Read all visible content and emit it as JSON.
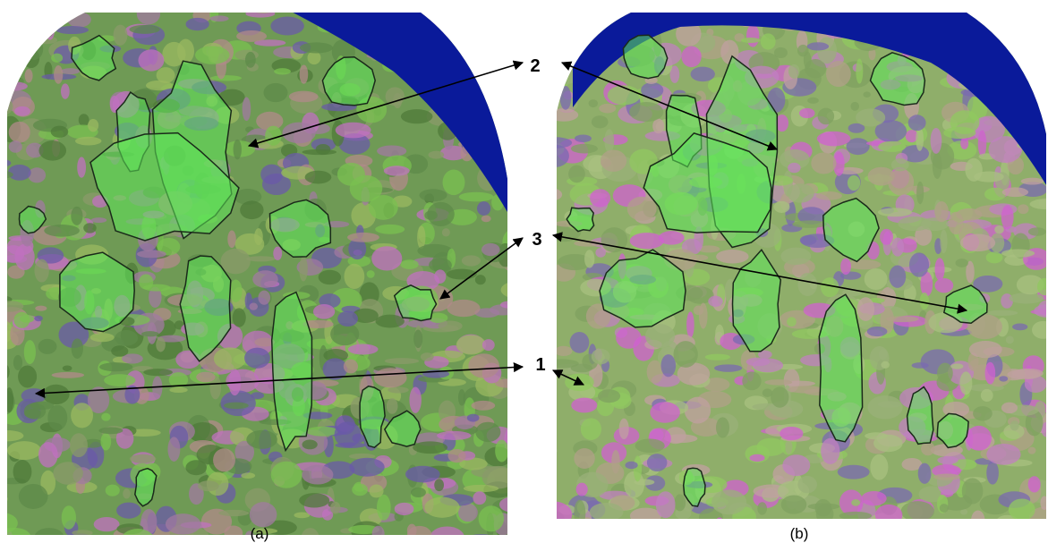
{
  "panels": [
    {
      "label": "(a)"
    },
    {
      "label": "(b)"
    }
  ],
  "annotations": [
    {
      "label": "2"
    },
    {
      "label": "3"
    },
    {
      "label": "1"
    }
  ]
}
